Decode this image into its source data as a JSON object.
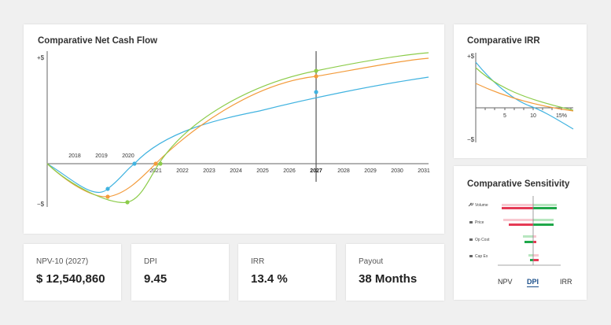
{
  "cash_flow": {
    "title": "Comparative Net Cash Flow",
    "y_top_label": "+$",
    "y_bottom_label": "−$",
    "years_above": [
      "2018",
      "2019",
      "2020"
    ],
    "years_below": [
      "2021",
      "2022",
      "2023",
      "2024",
      "2025",
      "2026",
      "2027",
      "2028",
      "2029",
      "2030",
      "2031"
    ],
    "highlight_year": "2027",
    "colors": {
      "blue": "#41b3e0",
      "orange": "#f39b3b",
      "green": "#8ccc4a"
    }
  },
  "irr": {
    "title": "Comparative IRR",
    "y_top_label": "+$",
    "y_bottom_label": "−$",
    "x_ticks": [
      "5",
      "10",
      "15%"
    ]
  },
  "sensitivity": {
    "title": "Comparative Sensitivity",
    "rows": [
      {
        "icon": "wrench-icon",
        "label": "Volume"
      },
      {
        "icon": "lock-icon",
        "label": "Price"
      },
      {
        "icon": "lock-icon",
        "label": "Op Cost"
      },
      {
        "icon": "lock-icon",
        "label": "Cap Ex"
      }
    ],
    "tabs": [
      "NPV",
      "DPI",
      "IRR"
    ],
    "active_tab": "DPI",
    "colors": {
      "red": "#e53a55",
      "green": "#1fa84a",
      "pink": "#f8c8d0",
      "light_green": "#b8e6c0"
    }
  },
  "kpis": [
    {
      "label": "NPV-10 (2027)",
      "value": "$ 12,540,860"
    },
    {
      "label": "DPI",
      "value": "9.45"
    },
    {
      "label": "IRR",
      "value": "13.4 %"
    },
    {
      "label": "Payout",
      "value": "38 Months"
    }
  ]
}
